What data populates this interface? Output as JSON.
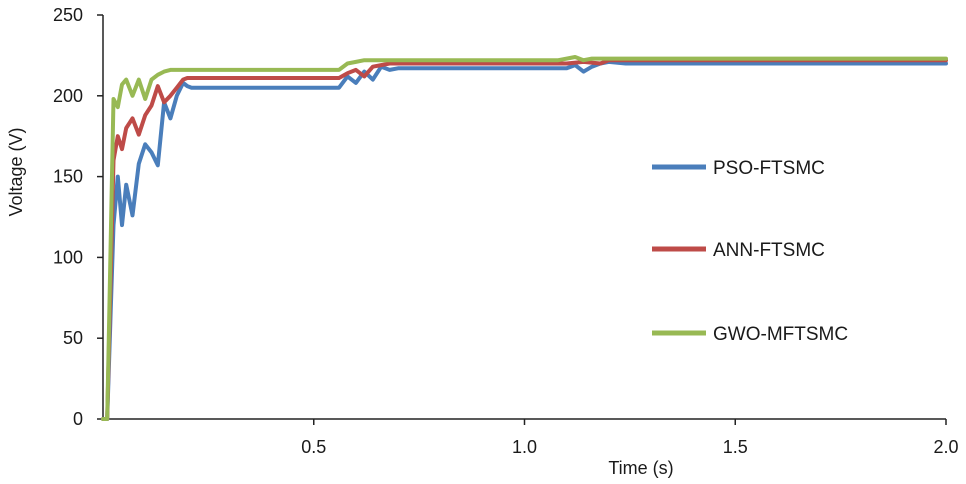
{
  "chart_data": {
    "type": "line",
    "xlabel": "Time (s)",
    "ylabel": "Voltage (V)",
    "xlim": [
      0,
      2.0
    ],
    "ylim": [
      0,
      250
    ],
    "x_ticks": [
      "0.5",
      "1.0",
      "1.5",
      "2.0"
    ],
    "y_ticks": [
      "0",
      "50",
      "100",
      "150",
      "200",
      "250"
    ],
    "grid": false,
    "legend_position": "right",
    "series": [
      {
        "name": "PSO-FTSMC",
        "color": "#4a7ebb",
        "x": [
          0,
          0.01,
          0.025,
          0.035,
          0.045,
          0.055,
          0.07,
          0.085,
          0.1,
          0.115,
          0.13,
          0.145,
          0.16,
          0.175,
          0.19,
          0.2,
          0.21,
          0.22,
          0.56,
          0.58,
          0.6,
          0.62,
          0.64,
          0.66,
          0.68,
          0.7,
          1.1,
          1.12,
          1.14,
          1.16,
          1.18,
          1.2,
          1.24,
          2.0
        ],
        "y": [
          0,
          0,
          120,
          150,
          120,
          145,
          126,
          158,
          170,
          165,
          157,
          196,
          186,
          200,
          208,
          206,
          205,
          205,
          205,
          212,
          208,
          215,
          210,
          218,
          216,
          217,
          217,
          219,
          215,
          218,
          220,
          221,
          220,
          220
        ]
      },
      {
        "name": "ANN-FTSMC",
        "color": "#be4b48",
        "x": [
          0,
          0.01,
          0.025,
          0.035,
          0.045,
          0.055,
          0.07,
          0.085,
          0.1,
          0.115,
          0.13,
          0.145,
          0.16,
          0.175,
          0.19,
          0.2,
          0.56,
          0.58,
          0.6,
          0.62,
          0.64,
          0.66,
          0.68,
          1.1,
          1.14,
          1.18,
          1.2,
          2.0
        ],
        "y": [
          0,
          0,
          160,
          175,
          167,
          180,
          186,
          176,
          188,
          194,
          206,
          196,
          200,
          205,
          210,
          211,
          211,
          214,
          216,
          212,
          218,
          219,
          220,
          220,
          221,
          220,
          222,
          222
        ]
      },
      {
        "name": "GWO-MFTSMC",
        "color": "#98b954",
        "x": [
          0,
          0.01,
          0.025,
          0.035,
          0.045,
          0.055,
          0.07,
          0.085,
          0.1,
          0.115,
          0.13,
          0.145,
          0.16,
          0.175,
          0.56,
          0.58,
          0.6,
          0.62,
          1.08,
          1.1,
          1.12,
          1.14,
          1.16,
          2.0
        ],
        "y": [
          0,
          0,
          198,
          193,
          207,
          210,
          200,
          210,
          198,
          210,
          213,
          215,
          216,
          216,
          216,
          220,
          221,
          222,
          222,
          223,
          224,
          222,
          223,
          223
        ]
      }
    ]
  }
}
